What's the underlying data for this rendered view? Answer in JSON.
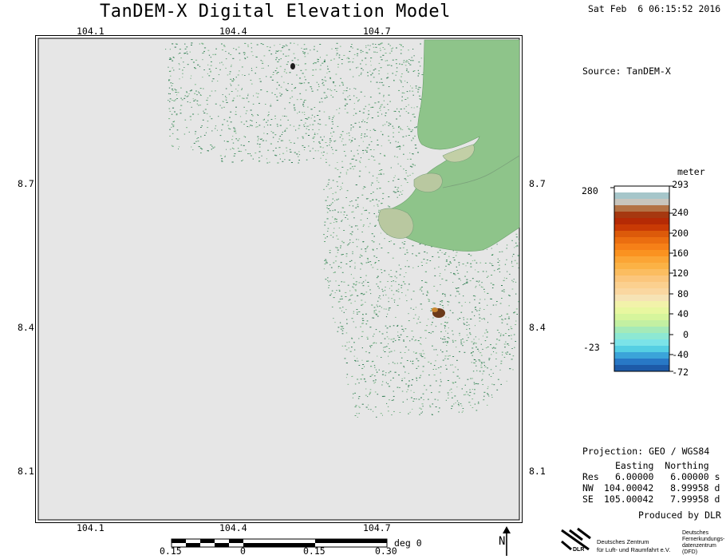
{
  "header": {
    "title": "TanDEM-X Digital Elevation Model",
    "date": "Sat Feb  6 06:15:52 2016",
    "source": "Source: TanDEM-X"
  },
  "map": {
    "top_lon_ticks": [
      "104.1",
      "104.4",
      "104.7"
    ],
    "bottom_lon_ticks": [
      "104.1",
      "104.4",
      "104.7"
    ],
    "left_lat_ticks": [
      "8.7",
      "8.4",
      "8.1"
    ],
    "right_lat_ticks": [
      "8.7",
      "8.4",
      "8.1"
    ],
    "colors": {
      "background": "#e6e6e6",
      "land": "#8ec48a",
      "speckle": "#3d8c5e",
      "frame": "#000000"
    }
  },
  "legend": {
    "unit": "meter",
    "max_value": "293",
    "tick_labels_right": [
      "240",
      "200",
      "160",
      "120",
      "80",
      "40",
      "0",
      "-40",
      "-72"
    ],
    "tick_labels_left": [
      "280",
      "-23"
    ],
    "colors_top_to_bottom": [
      "#ffffff",
      "#a6c6ca",
      "#c8c5bd",
      "#b37245",
      "#a63810",
      "#b52a05",
      "#c93a05",
      "#dc5a0a",
      "#eb6e10",
      "#f68018",
      "#fa9220",
      "#fba535",
      "#fbb245",
      "#fbbd60",
      "#fbc67c",
      "#fbd08f",
      "#fad7a0",
      "#f6e3b5",
      "#f2f2aa",
      "#e8f7a0",
      "#d6f59c",
      "#c3f0a2",
      "#a5eab8",
      "#8de8d3",
      "#7be3e8",
      "#55cfe3",
      "#3ba4d9",
      "#2878c6",
      "#1d5aa8"
    ]
  },
  "projection": {
    "label": "Projection: GEO / WGS84",
    "columns_header": "Easting  Northing",
    "rows": [
      {
        "label": "Res",
        "value": "6.00000   6.00000 s"
      },
      {
        "label": "NW",
        "value": "104.00042   8.99958 d"
      },
      {
        "label": "SE",
        "value": "105.00042   7.99958 d"
      }
    ]
  },
  "footer": {
    "produced_by": "Produced by DLR",
    "scale_ticks": [
      "0.15",
      "0",
      "0.15",
      "0.30"
    ],
    "scale_unit": "deg 0",
    "north_label": "N",
    "dlr_lines": [
      "Deutsches Zentrum",
      "für Luft- und Raumfahrt e.V."
    ],
    "dlr_acronym": "DLR",
    "dfd_lines": [
      "Deutsches",
      "Fernerkundungs-",
      "datenzentrum",
      "(DFD)"
    ]
  }
}
